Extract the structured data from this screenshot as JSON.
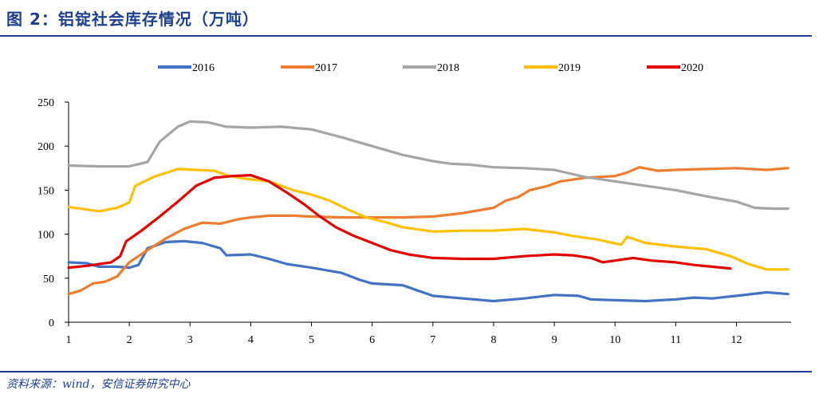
{
  "header": {
    "title": "图 2：铝锭社会库存情况（万吨）"
  },
  "footer": {
    "source": "资料来源：wind，安信证券研究中心"
  },
  "chart_data": {
    "type": "line",
    "title": "铝锭社会库存情况（万吨）",
    "xlabel": "",
    "ylabel": "",
    "xlim": [
      1,
      12.9
    ],
    "ylim": [
      0,
      250
    ],
    "x_ticks": [
      1,
      2,
      3,
      4,
      5,
      6,
      7,
      8,
      9,
      10,
      11,
      12
    ],
    "y_ticks": [
      0,
      50,
      100,
      150,
      200,
      250
    ],
    "grid": false,
    "legend": "top",
    "series": [
      {
        "name": "2016",
        "color": "#4472c4",
        "points": [
          [
            1,
            68
          ],
          [
            1.3,
            67
          ],
          [
            1.5,
            63
          ],
          [
            1.8,
            63
          ],
          [
            2.0,
            62
          ],
          [
            2.15,
            65
          ],
          [
            2.3,
            84
          ],
          [
            2.6,
            91
          ],
          [
            2.9,
            92
          ],
          [
            3.2,
            90
          ],
          [
            3.5,
            84
          ],
          [
            3.6,
            76
          ],
          [
            4.0,
            77
          ],
          [
            4.3,
            72
          ],
          [
            4.6,
            66
          ],
          [
            5.0,
            62
          ],
          [
            5.5,
            56
          ],
          [
            5.8,
            48
          ],
          [
            6.0,
            44
          ],
          [
            6.5,
            42
          ],
          [
            7.0,
            30
          ],
          [
            7.5,
            27
          ],
          [
            8.0,
            24
          ],
          [
            8.5,
            27
          ],
          [
            9.0,
            31
          ],
          [
            9.4,
            30
          ],
          [
            9.6,
            26
          ],
          [
            10.0,
            25
          ],
          [
            10.5,
            24
          ],
          [
            11.0,
            26
          ],
          [
            11.3,
            28
          ],
          [
            11.6,
            27
          ],
          [
            12.0,
            30
          ],
          [
            12.5,
            34
          ],
          [
            12.85,
            32
          ]
        ]
      },
      {
        "name": "2017",
        "color": "#ed7d31",
        "points": [
          [
            1,
            32
          ],
          [
            1.2,
            36
          ],
          [
            1.4,
            44
          ],
          [
            1.6,
            46
          ],
          [
            1.8,
            52
          ],
          [
            2.0,
            68
          ],
          [
            2.3,
            82
          ],
          [
            2.6,
            95
          ],
          [
            2.9,
            106
          ],
          [
            3.2,
            113
          ],
          [
            3.5,
            112
          ],
          [
            3.8,
            117
          ],
          [
            4.0,
            119
          ],
          [
            4.3,
            121
          ],
          [
            4.7,
            121
          ],
          [
            5.0,
            120
          ],
          [
            5.5,
            119
          ],
          [
            6.0,
            119
          ],
          [
            6.5,
            119
          ],
          [
            7.0,
            120
          ],
          [
            7.5,
            124
          ],
          [
            8.0,
            130
          ],
          [
            8.2,
            138
          ],
          [
            8.4,
            142
          ],
          [
            8.6,
            150
          ],
          [
            8.9,
            155
          ],
          [
            9.1,
            160
          ],
          [
            9.3,
            162
          ],
          [
            9.5,
            164
          ],
          [
            10.0,
            166
          ],
          [
            10.2,
            170
          ],
          [
            10.4,
            176
          ],
          [
            10.7,
            172
          ],
          [
            11.0,
            173
          ],
          [
            11.5,
            174
          ],
          [
            12.0,
            175
          ],
          [
            12.5,
            173
          ],
          [
            12.85,
            175
          ]
        ]
      },
      {
        "name": "2018",
        "color": "#a5a5a5",
        "points": [
          [
            1,
            178
          ],
          [
            1.5,
            177
          ],
          [
            2.0,
            177
          ],
          [
            2.3,
            182
          ],
          [
            2.5,
            205
          ],
          [
            2.8,
            222
          ],
          [
            3.0,
            228
          ],
          [
            3.3,
            227
          ],
          [
            3.6,
            222
          ],
          [
            4.0,
            221
          ],
          [
            4.5,
            222
          ],
          [
            5.0,
            219
          ],
          [
            5.5,
            210
          ],
          [
            6.0,
            200
          ],
          [
            6.5,
            190
          ],
          [
            7.0,
            183
          ],
          [
            7.3,
            180
          ],
          [
            7.6,
            179
          ],
          [
            8.0,
            176
          ],
          [
            8.5,
            175
          ],
          [
            9.0,
            173
          ],
          [
            9.5,
            165
          ],
          [
            10.0,
            160
          ],
          [
            10.5,
            155
          ],
          [
            11.0,
            150
          ],
          [
            11.5,
            143
          ],
          [
            12.0,
            137
          ],
          [
            12.3,
            130
          ],
          [
            12.6,
            129
          ],
          [
            12.85,
            129
          ]
        ]
      },
      {
        "name": "2019",
        "color": "#ffc000",
        "points": [
          [
            1,
            131
          ],
          [
            1.3,
            128
          ],
          [
            1.5,
            126
          ],
          [
            1.8,
            130
          ],
          [
            2.0,
            136
          ],
          [
            2.1,
            155
          ],
          [
            2.4,
            165
          ],
          [
            2.8,
            174
          ],
          [
            3.1,
            173
          ],
          [
            3.4,
            172
          ],
          [
            3.6,
            167
          ],
          [
            3.9,
            163
          ],
          [
            4.3,
            160
          ],
          [
            4.7,
            150
          ],
          [
            5.0,
            145
          ],
          [
            5.3,
            138
          ],
          [
            5.6,
            128
          ],
          [
            5.9,
            119
          ],
          [
            6.2,
            114
          ],
          [
            6.5,
            108
          ],
          [
            7.0,
            103
          ],
          [
            7.5,
            104
          ],
          [
            8.0,
            104
          ],
          [
            8.5,
            106
          ],
          [
            9.0,
            102
          ],
          [
            9.3,
            98
          ],
          [
            9.7,
            94
          ],
          [
            9.9,
            91
          ],
          [
            10.1,
            88
          ],
          [
            10.2,
            97
          ],
          [
            10.5,
            90
          ],
          [
            11.0,
            86
          ],
          [
            11.5,
            83
          ],
          [
            11.9,
            75
          ],
          [
            12.2,
            66
          ],
          [
            12.5,
            60
          ],
          [
            12.85,
            60
          ]
        ]
      },
      {
        "name": "2020",
        "color": "#e00000",
        "points": [
          [
            1,
            62
          ],
          [
            1.3,
            64
          ],
          [
            1.5,
            66
          ],
          [
            1.7,
            68
          ],
          [
            1.85,
            75
          ],
          [
            1.95,
            92
          ],
          [
            2.2,
            104
          ],
          [
            2.5,
            120
          ],
          [
            2.8,
            137
          ],
          [
            3.1,
            155
          ],
          [
            3.4,
            164
          ],
          [
            3.7,
            166
          ],
          [
            4.0,
            167
          ],
          [
            4.3,
            160
          ],
          [
            4.6,
            147
          ],
          [
            4.9,
            133
          ],
          [
            5.1,
            122
          ],
          [
            5.4,
            108
          ],
          [
            5.7,
            98
          ],
          [
            6.0,
            90
          ],
          [
            6.3,
            82
          ],
          [
            6.6,
            77
          ],
          [
            7.0,
            73
          ],
          [
            7.5,
            72
          ],
          [
            8.0,
            72
          ],
          [
            8.5,
            75
          ],
          [
            9.0,
            77
          ],
          [
            9.3,
            76
          ],
          [
            9.6,
            73
          ],
          [
            9.8,
            68
          ],
          [
            10.0,
            70
          ],
          [
            10.3,
            73
          ],
          [
            10.6,
            70
          ],
          [
            11.0,
            68
          ],
          [
            11.3,
            65
          ],
          [
            11.6,
            63
          ],
          [
            11.9,
            61
          ]
        ]
      }
    ]
  }
}
